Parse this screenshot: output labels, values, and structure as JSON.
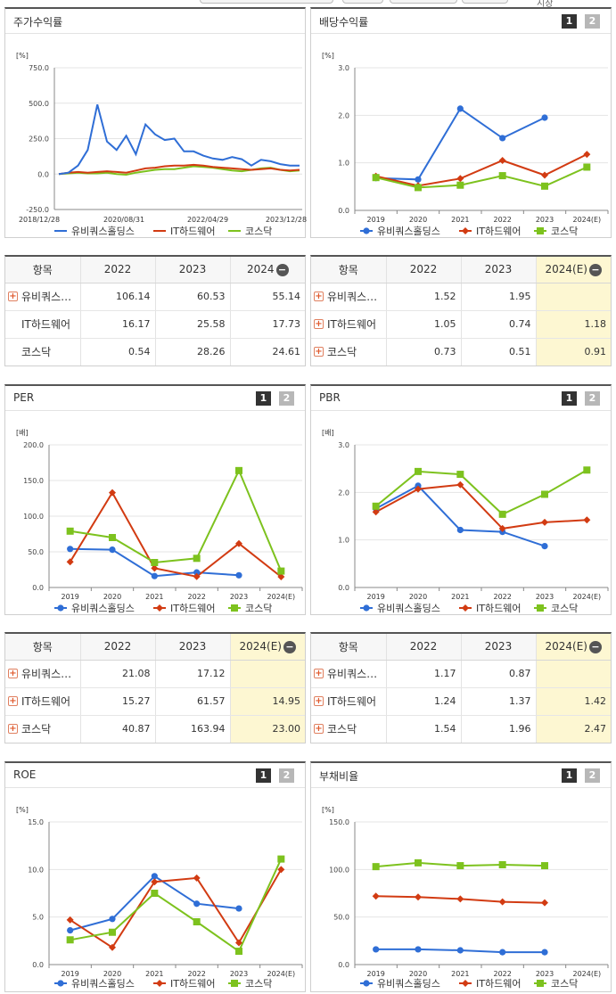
{
  "top_note": "시장",
  "colors": {
    "s1": "#2f6ed6",
    "s2": "#d23b12",
    "s3": "#7dc21e"
  },
  "legend": {
    "s1": "유비쿼스홀딩스",
    "s2": "IT하드웨어",
    "s3": "코스닥"
  },
  "page_buttons": {
    "one": "1",
    "two": "2"
  },
  "stock_return": {
    "title": "주가수익률",
    "chart_data": {
      "type": "line",
      "unit": "[%]",
      "ylim": [
        -250,
        750
      ],
      "yticks": [
        "750.0",
        "500.0",
        "250.0",
        "0.0",
        "-250.0"
      ],
      "xtick_labels": [
        "2018/12/28",
        "2020/08/31",
        "2022/04/29",
        "2023/12/28"
      ],
      "x_positions": [
        0,
        0.2,
        0.4,
        0.6,
        0.8,
        1.0,
        1.2,
        1.4,
        1.6,
        1.8,
        2.0,
        2.2,
        2.4,
        2.6,
        2.8,
        3.0,
        3.2,
        3.4,
        3.6,
        3.8,
        4.0,
        4.2,
        4.4,
        4.6,
        4.8,
        5.0
      ],
      "series": [
        {
          "name": "유비쿼스홀딩스",
          "values": [
            0,
            10,
            60,
            170,
            490,
            230,
            170,
            270,
            140,
            350,
            280,
            240,
            250,
            160,
            160,
            130,
            110,
            100,
            120,
            105,
            60,
            100,
            90,
            70,
            60,
            60
          ]
        },
        {
          "name": "IT하드웨어",
          "values": [
            0,
            10,
            15,
            10,
            15,
            20,
            15,
            10,
            25,
            40,
            45,
            55,
            60,
            60,
            65,
            60,
            50,
            45,
            40,
            35,
            30,
            35,
            40,
            30,
            25,
            30
          ]
        },
        {
          "name": "코스닥",
          "values": [
            0,
            5,
            10,
            5,
            5,
            10,
            0,
            -5,
            10,
            20,
            30,
            35,
            35,
            45,
            55,
            50,
            45,
            35,
            25,
            20,
            30,
            40,
            45,
            30,
            20,
            25
          ]
        }
      ]
    }
  },
  "dividend_yield": {
    "title": "배당수익률",
    "chart_data": {
      "type": "line",
      "unit": "[%]",
      "ylim": [
        0,
        3
      ],
      "yticks": [
        "3.0",
        "2.0",
        "1.0",
        "0.0"
      ],
      "categories": [
        "2019",
        "2020",
        "2021",
        "2022",
        "2023",
        "2024(E)"
      ],
      "series": [
        {
          "name": "유비쿼스홀딩스",
          "values": [
            0.68,
            0.65,
            2.14,
            1.52,
            1.95,
            null
          ]
        },
        {
          "name": "IT하드웨어",
          "values": [
            0.72,
            0.52,
            0.67,
            1.05,
            0.74,
            1.18
          ]
        },
        {
          "name": "코스닥",
          "values": [
            0.69,
            0.48,
            0.53,
            0.73,
            0.51,
            0.91
          ]
        }
      ]
    }
  },
  "stock_return_table": {
    "header": [
      "항목",
      "2022",
      "2023",
      "2024"
    ],
    "rows": [
      {
        "name": "유비쿼스…",
        "values": [
          "106.14",
          "60.53",
          "55.14"
        ]
      },
      {
        "name": "IT하드웨어",
        "values": [
          "16.17",
          "25.58",
          "17.73"
        ]
      },
      {
        "name": "코스닥",
        "values": [
          "0.54",
          "28.26",
          "24.61"
        ]
      }
    ]
  },
  "dividend_table": {
    "header": [
      "항목",
      "2022",
      "2023",
      "2024(E)"
    ],
    "rows": [
      {
        "name": "유비쿼스…",
        "values": [
          "1.52",
          "1.95",
          ""
        ]
      },
      {
        "name": "IT하드웨어",
        "values": [
          "1.05",
          "0.74",
          "1.18"
        ]
      },
      {
        "name": "코스닥",
        "values": [
          "0.73",
          "0.51",
          "0.91"
        ]
      }
    ]
  },
  "per": {
    "title": "PER",
    "chart_data": {
      "type": "line",
      "unit": "[배]",
      "ylim": [
        0,
        200
      ],
      "yticks": [
        "200.0",
        "150.0",
        "100.0",
        "50.0",
        "0.0"
      ],
      "categories": [
        "2019",
        "2020",
        "2021",
        "2022",
        "2023",
        "2024(E)"
      ],
      "series": [
        {
          "name": "유비쿼스홀딩스",
          "values": [
            54,
            53,
            16,
            21.08,
            17.12,
            null
          ]
        },
        {
          "name": "IT하드웨어",
          "values": [
            36,
            133,
            27,
            15.27,
            61.57,
            14.95
          ]
        },
        {
          "name": "코스닥",
          "values": [
            79,
            70,
            35,
            40.87,
            163.94,
            23.0
          ]
        }
      ]
    }
  },
  "pbr": {
    "title": "PBR",
    "chart_data": {
      "type": "line",
      "unit": "[배]",
      "ylim": [
        0,
        3
      ],
      "yticks": [
        "3.0",
        "2.0",
        "1.0",
        "0.0"
      ],
      "categories": [
        "2019",
        "2020",
        "2021",
        "2022",
        "2023",
        "2024(E)"
      ],
      "series": [
        {
          "name": "유비쿼스홀딩스",
          "values": [
            1.66,
            2.14,
            1.21,
            1.17,
            0.87,
            null
          ]
        },
        {
          "name": "IT하드웨어",
          "values": [
            1.59,
            2.07,
            2.16,
            1.24,
            1.37,
            1.42
          ]
        },
        {
          "name": "코스닥",
          "values": [
            1.71,
            2.44,
            2.38,
            1.54,
            1.96,
            2.47
          ]
        }
      ]
    }
  },
  "per_table": {
    "header": [
      "항목",
      "2022",
      "2023",
      "2024(E)"
    ],
    "rows": [
      {
        "name": "유비쿼스…",
        "values": [
          "21.08",
          "17.12",
          ""
        ]
      },
      {
        "name": "IT하드웨어",
        "values": [
          "15.27",
          "61.57",
          "14.95"
        ]
      },
      {
        "name": "코스닥",
        "values": [
          "40.87",
          "163.94",
          "23.00"
        ]
      }
    ]
  },
  "pbr_table": {
    "header": [
      "항목",
      "2022",
      "2023",
      "2024(E)"
    ],
    "rows": [
      {
        "name": "유비쿼스…",
        "values": [
          "1.17",
          "0.87",
          ""
        ]
      },
      {
        "name": "IT하드웨어",
        "values": [
          "1.24",
          "1.37",
          "1.42"
        ]
      },
      {
        "name": "코스닥",
        "values": [
          "1.54",
          "1.96",
          "2.47"
        ]
      }
    ]
  },
  "roe": {
    "title": "ROE",
    "chart_data": {
      "type": "line",
      "unit": "[%]",
      "ylim": [
        0,
        15
      ],
      "yticks": [
        "15.0",
        "10.0",
        "5.0",
        "0.0"
      ],
      "categories": [
        "2019",
        "2020",
        "2021",
        "2022",
        "2023",
        "2024(E)"
      ],
      "series": [
        {
          "name": "유비쿼스홀딩스",
          "values": [
            3.6,
            4.8,
            9.3,
            6.4,
            5.9,
            null
          ]
        },
        {
          "name": "IT하드웨어",
          "values": [
            4.7,
            1.8,
            8.7,
            9.1,
            2.3,
            10.0
          ]
        },
        {
          "name": "코스닥",
          "values": [
            2.6,
            3.4,
            7.5,
            4.5,
            1.4,
            11.1
          ]
        }
      ]
    }
  },
  "debt_ratio": {
    "title": "부채비율",
    "chart_data": {
      "type": "line",
      "unit": "[%]",
      "ylim": [
        0,
        150
      ],
      "yticks": [
        "150.0",
        "100.0",
        "50.0",
        "0.0"
      ],
      "categories": [
        "2019",
        "2020",
        "2021",
        "2022",
        "2023",
        "2024(E)"
      ],
      "series": [
        {
          "name": "유비쿼스홀딩스",
          "values": [
            16,
            16,
            15,
            13,
            13,
            null
          ]
        },
        {
          "name": "IT하드웨어",
          "values": [
            72,
            71,
            69,
            66,
            65,
            null
          ]
        },
        {
          "name": "코스닥",
          "values": [
            103,
            107,
            104,
            105,
            104,
            null
          ]
        }
      ]
    }
  }
}
